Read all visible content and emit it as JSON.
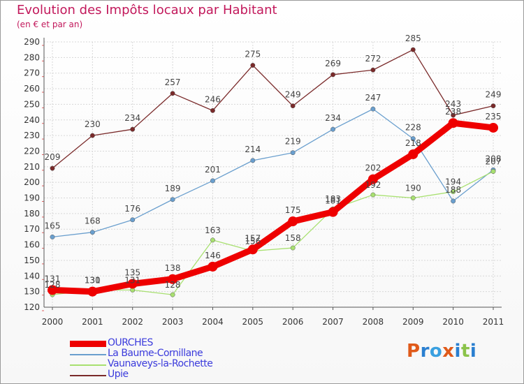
{
  "chart_data": {
    "type": "line",
    "title": "Evolution des Impôts locaux par Habitant",
    "subtitle": "(en € et par an)",
    "x": [
      "2000",
      "2001",
      "2002",
      "2003",
      "2004",
      "2005",
      "2006",
      "2007",
      "2008",
      "2009",
      "2010",
      "2011"
    ],
    "ylim": [
      120,
      290
    ],
    "yticks": [
      120,
      130,
      140,
      150,
      160,
      170,
      180,
      190,
      200,
      210,
      220,
      230,
      240,
      250,
      260,
      270,
      280,
      290
    ],
    "grid": true,
    "series": [
      {
        "name": "OURCHES",
        "color": "#ee0000",
        "values": [
          131,
          130,
          135,
          138,
          146,
          157,
          175,
          181,
          202,
          218,
          238,
          235
        ]
      },
      {
        "name": "La Baume-Cornillane",
        "color": "#6a9fce",
        "values": [
          165,
          168,
          176,
          189,
          201,
          214,
          219,
          234,
          247,
          228,
          188,
          208
        ]
      },
      {
        "name": "Vaunaveys-la-Rochette",
        "color": "#a8e070",
        "values": [
          128,
          131,
          131,
          128,
          163,
          156,
          158,
          183,
          192,
          190,
          194,
          207
        ]
      },
      {
        "name": "Upie",
        "color": "#7a2a2a",
        "values": [
          209,
          230,
          234,
          257,
          246,
          275,
          249,
          269,
          272,
          285,
          243,
          249
        ]
      }
    ]
  },
  "logo": {
    "text": "Proxiti",
    "colors": [
      "#e05a1a",
      "#2a7fd0",
      "#3aa0e0",
      "#e05a1a",
      "#2a7fd0",
      "#8bc34a",
      "#2a7fd0"
    ]
  }
}
